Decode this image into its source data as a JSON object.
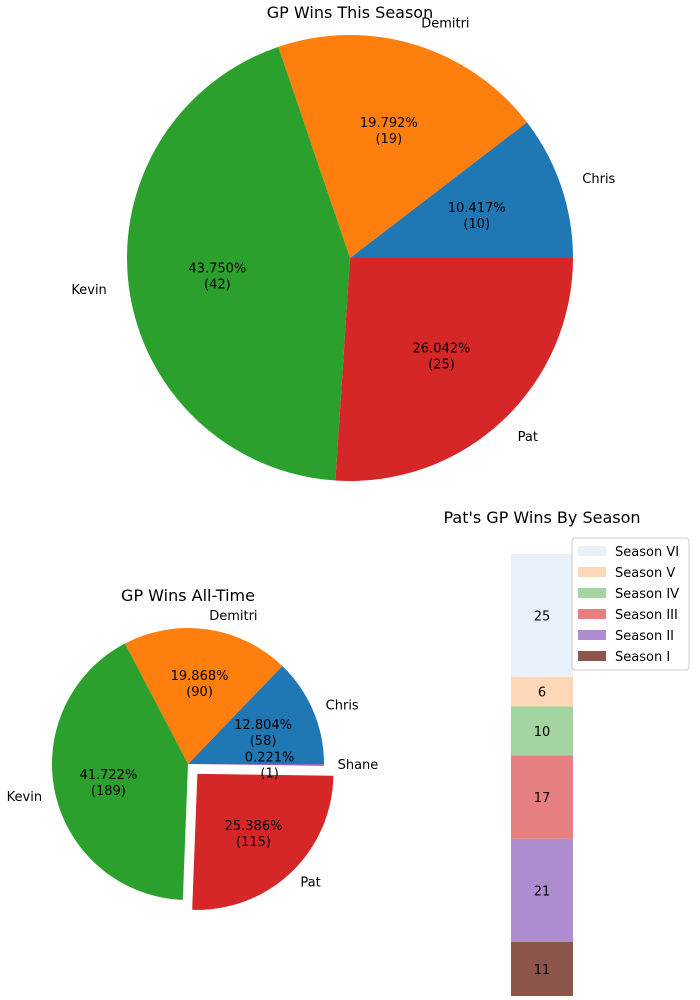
{
  "chart_data": [
    {
      "type": "pie",
      "title": "GP Wins This Season",
      "slices": [
        {
          "label": "Chris",
          "value": 10,
          "pct_label": "10.417%",
          "count_label": "(10)",
          "color": "#1f77b4"
        },
        {
          "label": "Demitri",
          "value": 19,
          "pct_label": "19.792%",
          "count_label": "(19)",
          "color": "#ff7f0e"
        },
        {
          "label": "Kevin",
          "value": 42,
          "pct_label": "43.750%",
          "count_label": "(42)",
          "color": "#2ca02c"
        },
        {
          "label": "Pat",
          "value": 25,
          "pct_label": "26.042%",
          "count_label": "(25)",
          "color": "#d62728"
        }
      ]
    },
    {
      "type": "pie",
      "title": "GP Wins All-Time",
      "slices": [
        {
          "label": "Chris",
          "value": 58,
          "pct_label": "12.804%",
          "count_label": "(58)",
          "color": "#1f77b4"
        },
        {
          "label": "Demitri",
          "value": 90,
          "pct_label": "19.868%",
          "count_label": "(90)",
          "color": "#ff7f0e"
        },
        {
          "label": "Kevin",
          "value": 189,
          "pct_label": "41.722%",
          "count_label": "(189)",
          "color": "#2ca02c"
        },
        {
          "label": "Pat",
          "value": 115,
          "pct_label": "25.386%",
          "count_label": "(115)",
          "color": "#d62728",
          "exploded": true
        },
        {
          "label": "Shane",
          "value": 1,
          "pct_label": "0.221%",
          "count_label": "(1)",
          "color": "#9467bd"
        }
      ]
    },
    {
      "type": "bar",
      "stacked": true,
      "title": "Pat's GP Wins By Season",
      "legend_position": "top-right",
      "series": [
        {
          "name": "Season I",
          "value": 11,
          "value_label": "11",
          "color": "#8c564b"
        },
        {
          "name": "Season II",
          "value": 21,
          "value_label": "21",
          "color": "#ad8ccf"
        },
        {
          "name": "Season III",
          "value": 17,
          "value_label": "17",
          "color": "#e67f7f"
        },
        {
          "name": "Season IV",
          "value": 10,
          "value_label": "10",
          "color": "#a4d4a0"
        },
        {
          "name": "Season V",
          "value": 6,
          "value_label": "6",
          "color": "#ffd9b7"
        },
        {
          "name": "Season VI",
          "value": 25,
          "value_label": "25",
          "color": "#e8f0f9"
        }
      ]
    }
  ]
}
